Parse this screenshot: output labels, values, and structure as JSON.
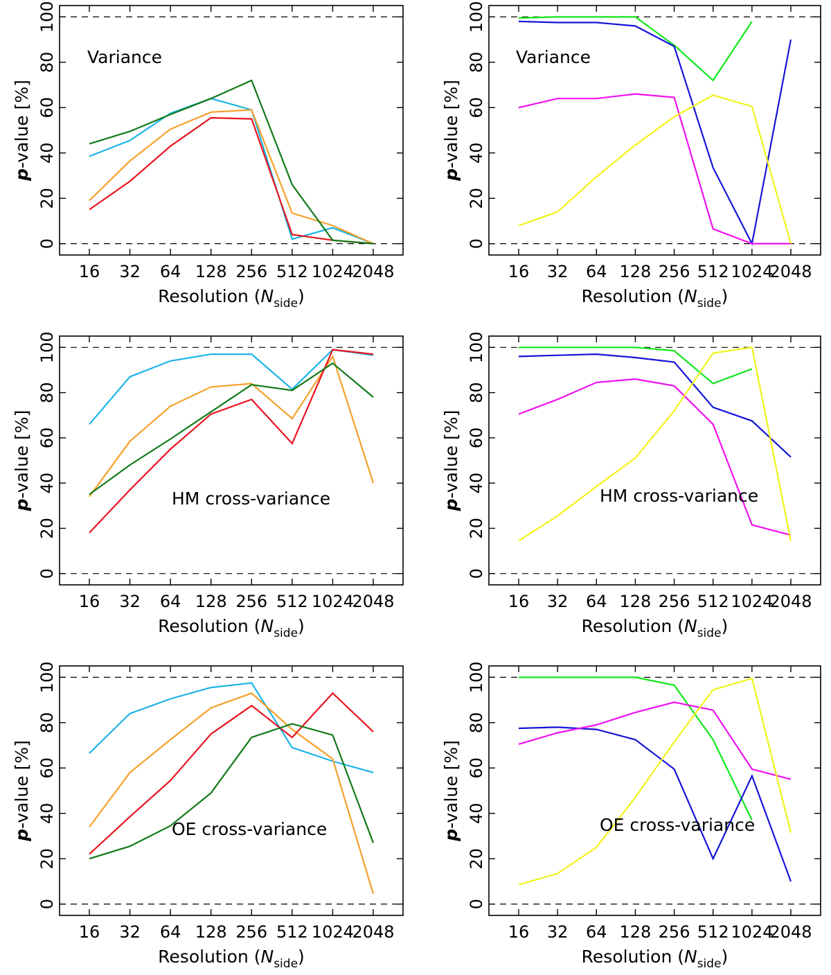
{
  "figure": {
    "xlabel_prefix": "Resolution (",
    "xlabel_var": "N",
    "xlabel_sub": "side",
    "xlabel_suffix": ")",
    "ylabel_var": "p",
    "ylabel_rest": "-value [%]"
  },
  "chart_data": [
    {
      "type": "line",
      "annotation": "Variance",
      "categories": [
        "16",
        "32",
        "64",
        "128",
        "256",
        "512",
        "1024",
        "2048"
      ],
      "ylim": [
        -5,
        105
      ],
      "yticks": [
        0,
        20,
        40,
        60,
        80,
        100
      ],
      "reference_lines": [
        0,
        100
      ],
      "series": [
        {
          "name": "s1",
          "color": "#1bb4e8",
          "values": [
            38.5,
            45.5,
            57.5,
            64,
            59,
            2,
            7,
            0
          ]
        },
        {
          "name": "s2",
          "color": "#f5a02a",
          "values": [
            19,
            36.5,
            50.5,
            58,
            59,
            13.5,
            8,
            0
          ]
        },
        {
          "name": "s3",
          "color": "#e8141e",
          "values": [
            15,
            27.5,
            43,
            55.5,
            55,
            4,
            1.5,
            0
          ]
        },
        {
          "name": "s4",
          "color": "#117a18",
          "values": [
            44,
            49.5,
            57,
            64,
            72,
            26,
            1.5,
            0
          ]
        }
      ]
    },
    {
      "type": "line",
      "annotation": "Variance",
      "categories": [
        "16",
        "32",
        "64",
        "128",
        "256",
        "512",
        "1024",
        "2048"
      ],
      "ylim": [
        -5,
        105
      ],
      "yticks": [
        0,
        20,
        40,
        60,
        80,
        100
      ],
      "reference_lines": [
        0,
        100
      ],
      "series": [
        {
          "name": "s1",
          "color": "#10e81a",
          "values": [
            99.5,
            100,
            100,
            100,
            87.5,
            72,
            98,
            null
          ]
        },
        {
          "name": "s2",
          "color": "#1414d8",
          "values": [
            98,
            97.5,
            97.5,
            96,
            87,
            33.5,
            0,
            90
          ]
        },
        {
          "name": "s3",
          "color": "#f010f0",
          "values": [
            60,
            64,
            64,
            66,
            64.5,
            6.5,
            0,
            0
          ]
        },
        {
          "name": "s4",
          "color": "#f2f21a",
          "values": [
            8,
            14,
            29.5,
            43.5,
            56,
            65.5,
            60.5,
            0
          ]
        }
      ]
    },
    {
      "type": "line",
      "annotation": "HM cross-variance",
      "categories": [
        "16",
        "32",
        "64",
        "128",
        "256",
        "512",
        "1024",
        "2048"
      ],
      "ylim": [
        -5,
        105
      ],
      "yticks": [
        0,
        20,
        40,
        60,
        80,
        100
      ],
      "reference_lines": [
        0,
        100
      ],
      "series": [
        {
          "name": "s1",
          "color": "#1bb4e8",
          "values": [
            66,
            87,
            94,
            97,
            97,
            81.5,
            99,
            96.5
          ]
        },
        {
          "name": "s2",
          "color": "#f5a02a",
          "values": [
            34,
            58.5,
            74,
            82.5,
            84,
            68.5,
            96,
            40
          ]
        },
        {
          "name": "s3",
          "color": "#e8141e",
          "values": [
            18,
            37,
            55,
            70.5,
            77,
            57.5,
            99,
            97
          ]
        },
        {
          "name": "s4",
          "color": "#117a18",
          "values": [
            35,
            48,
            59.5,
            71.5,
            83.5,
            81,
            93,
            78
          ]
        }
      ]
    },
    {
      "type": "line",
      "annotation": "HM cross-variance",
      "categories": [
        "16",
        "32",
        "64",
        "128",
        "256",
        "512",
        "1024",
        "2048"
      ],
      "ylim": [
        -5,
        105
      ],
      "yticks": [
        0,
        20,
        40,
        60,
        80,
        100
      ],
      "reference_lines": [
        0,
        100
      ],
      "series": [
        {
          "name": "s1",
          "color": "#10e81a",
          "values": [
            100,
            100,
            100,
            100,
            98.5,
            84,
            90.5,
            null
          ]
        },
        {
          "name": "s2",
          "color": "#1414d8",
          "values": [
            96,
            96.5,
            97,
            95.5,
            93.5,
            73.5,
            67.5,
            51.5
          ]
        },
        {
          "name": "s3",
          "color": "#f010f0",
          "values": [
            70.5,
            77,
            84.5,
            86,
            83,
            66,
            21.5,
            17
          ]
        },
        {
          "name": "s4",
          "color": "#f2f21a",
          "values": [
            14.5,
            25.5,
            38.5,
            51,
            72,
            97.5,
            100,
            14.5
          ]
        }
      ]
    },
    {
      "type": "line",
      "annotation": "OE cross-variance",
      "categories": [
        "16",
        "32",
        "64",
        "128",
        "256",
        "512",
        "1024",
        "2048"
      ],
      "ylim": [
        -5,
        105
      ],
      "yticks": [
        0,
        20,
        40,
        60,
        80,
        100
      ],
      "reference_lines": [
        0,
        100
      ],
      "series": [
        {
          "name": "s1",
          "color": "#1bb4e8",
          "values": [
            66.5,
            84,
            90.5,
            95.5,
            97.5,
            69,
            63,
            58
          ]
        },
        {
          "name": "s2",
          "color": "#f5a02a",
          "values": [
            34,
            58,
            72.5,
            86.5,
            93,
            77,
            64,
            4.5
          ]
        },
        {
          "name": "s3",
          "color": "#e8141e",
          "values": [
            22,
            38.5,
            54.5,
            75,
            87.5,
            73.5,
            93,
            76
          ]
        },
        {
          "name": "s4",
          "color": "#117a18",
          "values": [
            20,
            25.5,
            34.5,
            49,
            73.5,
            79.5,
            74.5,
            27
          ]
        }
      ]
    },
    {
      "type": "line",
      "annotation": "OE cross-variance",
      "categories": [
        "16",
        "32",
        "64",
        "128",
        "256",
        "512",
        "1024",
        "2048"
      ],
      "ylim": [
        -5,
        105
      ],
      "yticks": [
        0,
        20,
        40,
        60,
        80,
        100
      ],
      "reference_lines": [
        0,
        100
      ],
      "series": [
        {
          "name": "s1",
          "color": "#10e81a",
          "values": [
            100,
            100,
            100,
            100,
            96.5,
            72.5,
            37,
            null
          ]
        },
        {
          "name": "s2",
          "color": "#1414d8",
          "values": [
            77.5,
            78,
            77,
            72.5,
            59.5,
            20,
            56.5,
            10
          ]
        },
        {
          "name": "s3",
          "color": "#f010f0",
          "values": [
            70.5,
            75.5,
            79,
            84.5,
            89,
            85.5,
            59.5,
            55
          ]
        },
        {
          "name": "s4",
          "color": "#f2f21a",
          "values": [
            8.5,
            13.5,
            25,
            47,
            71.5,
            94.5,
            99.5,
            31.5
          ]
        }
      ]
    }
  ]
}
